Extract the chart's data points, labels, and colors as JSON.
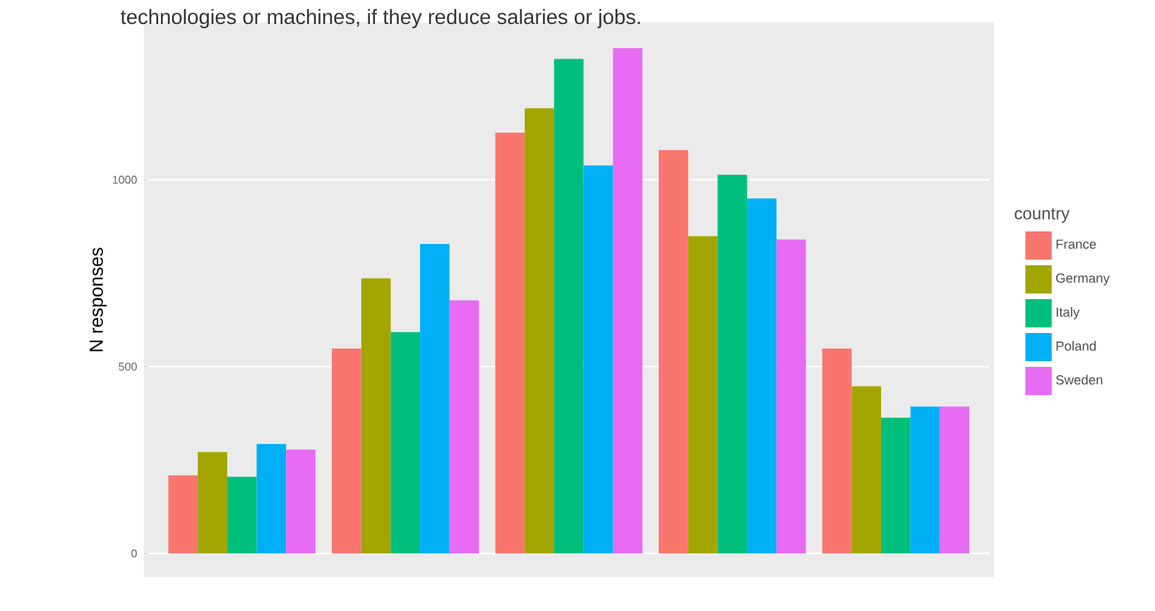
{
  "chart_data": {
    "type": "bar",
    "title": "technologies or machines, if they reduce salaries or jobs.",
    "ylabel": "N responses",
    "legend_title": "country",
    "categories": [
      null,
      null,
      null,
      null,
      null
    ],
    "series": [
      {
        "name": "France",
        "color": "#f8766d",
        "values": [
          209,
          548,
          1126,
          1079,
          548
        ]
      },
      {
        "name": "Germany",
        "color": "#a3a500",
        "values": [
          271,
          736,
          1191,
          849,
          447
        ]
      },
      {
        "name": "Italy",
        "color": "#00bf7d",
        "values": [
          205,
          592,
          1323,
          1013,
          363
        ]
      },
      {
        "name": "Poland",
        "color": "#00b0f6",
        "values": [
          293,
          828,
          1038,
          950,
          393
        ]
      },
      {
        "name": "Sweden",
        "color": "#e76bf3",
        "values": [
          278,
          677,
          1352,
          840,
          393
        ]
      }
    ],
    "ylim": [
      -64,
      1421
    ],
    "yticks": [
      0,
      500,
      1000
    ],
    "grid": "y",
    "legend": "right"
  }
}
